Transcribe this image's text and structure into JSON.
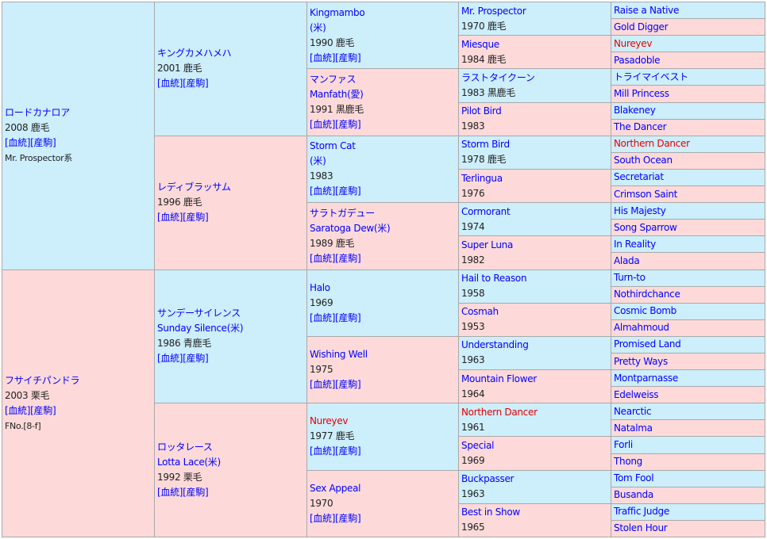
{
  "g1": [
    {
      "name": "ロードカナロア",
      "info": "2008 鹿毛",
      "note": "Mr. Prospector系"
    },
    {
      "name": "フサイチパンドラ",
      "info": "2003 栗毛",
      "note": "FNo.[8-f]"
    }
  ],
  "g2": [
    {
      "name": "キングカメハメハ",
      "info": "2001 鹿毛"
    },
    {
      "name": "レディブラッサム",
      "info": "1996 鹿毛"
    },
    {
      "name": "サンデーサイレンス",
      "alt": "Sunday Silence(米)",
      "info": "1986 青鹿毛"
    },
    {
      "name": "ロッタレース",
      "alt": "Lotta Lace(米)",
      "info": "1992 栗毛"
    }
  ],
  "g3": [
    {
      "name": "Kingmambo",
      "alt": "(米)",
      "info": "1990 鹿毛"
    },
    {
      "name": "マンファス",
      "alt": "Manfath(愛)",
      "info": "1991 黒鹿毛"
    },
    {
      "name": "Storm Cat",
      "alt": "(米)",
      "info": "1983"
    },
    {
      "name": "サラトガデュー",
      "alt": "Saratoga Dew(米)",
      "info": "1989 鹿毛"
    },
    {
      "name": "Halo",
      "info": "1969"
    },
    {
      "name": "Wishing Well",
      "info": "1975"
    },
    {
      "name": "Nureyev",
      "info": "1977 鹿毛",
      "red": true
    },
    {
      "name": "Sex Appeal",
      "info": "1970"
    }
  ],
  "g4": [
    {
      "name": "Mr. Prospector",
      "info": "1970 鹿毛"
    },
    {
      "name": "Miesque",
      "info": "1984 鹿毛"
    },
    {
      "name": "ラストタイクーン",
      "info": "1983 黒鹿毛"
    },
    {
      "name": "Pilot Bird",
      "info": "1983"
    },
    {
      "name": "Storm Bird",
      "info": "1978 鹿毛"
    },
    {
      "name": "Terlingua",
      "info": "1976"
    },
    {
      "name": "Cormorant",
      "info": "1974"
    },
    {
      "name": "Super Luna",
      "info": "1982"
    },
    {
      "name": "Hail to Reason",
      "info": "1958"
    },
    {
      "name": "Cosmah",
      "info": "1953"
    },
    {
      "name": "Understanding",
      "info": "1963"
    },
    {
      "name": "Mountain Flower",
      "info": "1964"
    },
    {
      "name": "Northern Dancer",
      "info": "1961",
      "red": true
    },
    {
      "name": "Special",
      "info": "1969"
    },
    {
      "name": "Buckpasser",
      "info": "1963"
    },
    {
      "name": "Best in Show",
      "info": "1965"
    }
  ],
  "g5": [
    {
      "name": "Raise a Native"
    },
    {
      "name": "Gold Digger"
    },
    {
      "name": "Nureyev",
      "red": true
    },
    {
      "name": "Pasadoble"
    },
    {
      "name": "トライマイベスト"
    },
    {
      "name": "Mill Princess"
    },
    {
      "name": "Blakeney"
    },
    {
      "name": "The Dancer"
    },
    {
      "name": "Northern Dancer",
      "red": true
    },
    {
      "name": "South Ocean"
    },
    {
      "name": "Secretariat"
    },
    {
      "name": "Crimson Saint"
    },
    {
      "name": "His Majesty"
    },
    {
      "name": "Song Sparrow"
    },
    {
      "name": "In Reality"
    },
    {
      "name": "Alada"
    },
    {
      "name": "Turn-to"
    },
    {
      "name": "Nothirdchance"
    },
    {
      "name": "Cosmic Bomb"
    },
    {
      "name": "Almahmoud"
    },
    {
      "name": "Promised Land"
    },
    {
      "name": "Pretty Ways"
    },
    {
      "name": "Montparnasse"
    },
    {
      "name": "Edelweiss"
    },
    {
      "name": "Nearctic"
    },
    {
      "name": "Natalma"
    },
    {
      "name": "Forli"
    },
    {
      "name": "Thong"
    },
    {
      "name": "Tom Fool"
    },
    {
      "name": "Busanda"
    },
    {
      "name": "Traffic Judge"
    },
    {
      "name": "Stolen Hour"
    }
  ],
  "links": {
    "pedigree": "[血統]",
    "progeny": "[産駒]"
  }
}
